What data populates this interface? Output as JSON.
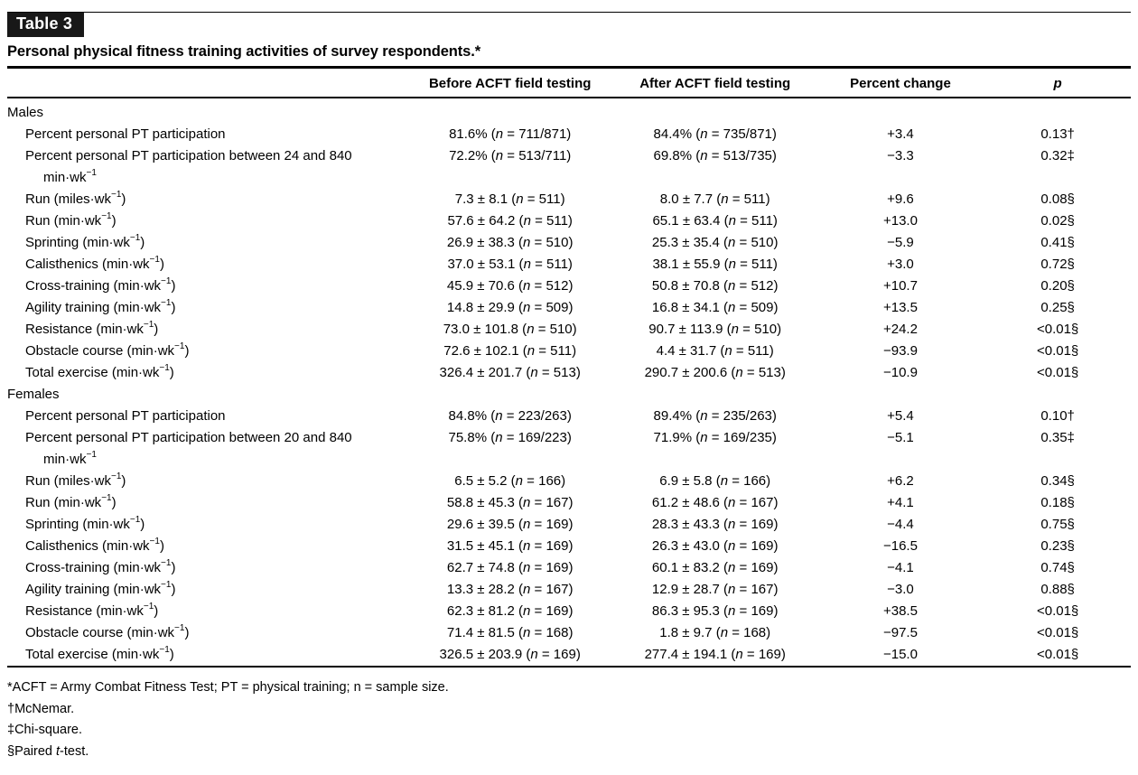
{
  "page": {
    "tag_label": "Table 3",
    "title": "Personal physical fitness training activities of survey respondents.*"
  },
  "columns": [
    "",
    "Before ACFT field testing",
    "After ACFT field testing",
    "Percent change",
    "p"
  ],
  "sections": [
    {
      "header": "Males",
      "rows": [
        {
          "label": "Percent personal PT participation",
          "label2": "",
          "before": "81.6% (n = 711/871)",
          "after": "84.4% (n = 735/871)",
          "change": "+3.4",
          "p": "0.13†"
        },
        {
          "label": "Percent personal PT participation between 24 and 840",
          "label2": "min·wk⁻¹",
          "before": "72.2% (n = 513/711)",
          "after": "69.8% (n = 513/735)",
          "change": "−3.3",
          "p": "0.32‡"
        },
        {
          "label": "Run (miles·wk⁻¹)",
          "label2": "",
          "before": "7.3 ± 8.1 (n = 511)",
          "after": "8.0 ± 7.7 (n = 511)",
          "change": "+9.6",
          "p": "0.08§"
        },
        {
          "label": "Run (min·wk⁻¹)",
          "label2": "",
          "before": "57.6 ± 64.2 (n = 511)",
          "after": "65.1 ± 63.4 (n = 511)",
          "change": "+13.0",
          "p": "0.02§"
        },
        {
          "label": "Sprinting (min·wk⁻¹)",
          "label2": "",
          "before": "26.9 ± 38.3 (n = 510)",
          "after": "25.3 ± 35.4 (n = 510)",
          "change": "−5.9",
          "p": "0.41§"
        },
        {
          "label": "Calisthenics (min·wk⁻¹)",
          "label2": "",
          "before": "37.0 ± 53.1 (n = 511)",
          "after": "38.1 ± 55.9 (n = 511)",
          "change": "+3.0",
          "p": "0.72§"
        },
        {
          "label": "Cross-training (min·wk⁻¹)",
          "label2": "",
          "before": "45.9 ± 70.6 (n = 512)",
          "after": "50.8 ± 70.8 (n = 512)",
          "change": "+10.7",
          "p": "0.20§"
        },
        {
          "label": "Agility training (min·wk⁻¹)",
          "label2": "",
          "before": "14.8 ± 29.9 (n = 509)",
          "after": "16.8 ± 34.1 (n = 509)",
          "change": "+13.5",
          "p": "0.25§"
        },
        {
          "label": "Resistance (min·wk⁻¹)",
          "label2": "",
          "before": "73.0 ± 101.8 (n = 510)",
          "after": "90.7 ± 113.9 (n = 510)",
          "change": "+24.2",
          "p": "<0.01§"
        },
        {
          "label": "Obstacle course (min·wk⁻¹)",
          "label2": "",
          "before": "72.6 ± 102.1 (n = 511)",
          "after": "4.4 ± 31.7 (n = 511)",
          "change": "−93.9",
          "p": "<0.01§"
        },
        {
          "label": "Total exercise (min·wk⁻¹)",
          "label2": "",
          "before": "326.4 ± 201.7 (n = 513)",
          "after": "290.7 ± 200.6 (n = 513)",
          "change": "−10.9",
          "p": "<0.01§"
        }
      ]
    },
    {
      "header": "Females",
      "rows": [
        {
          "label": "Percent personal PT participation",
          "label2": "",
          "before": "84.8% (n = 223/263)",
          "after": "89.4% (n = 235/263)",
          "change": "+5.4",
          "p": "0.10†"
        },
        {
          "label": "Percent personal PT participation between 20 and 840",
          "label2": "min·wk⁻¹",
          "before": "75.8% (n = 169/223)",
          "after": "71.9% (n = 169/235)",
          "change": "−5.1",
          "p": "0.35‡"
        },
        {
          "label": "Run (miles·wk⁻¹)",
          "label2": "",
          "before": "6.5 ± 5.2 (n = 166)",
          "after": "6.9 ± 5.8 (n = 166)",
          "change": "+6.2",
          "p": "0.34§"
        },
        {
          "label": "Run (min·wk⁻¹)",
          "label2": "",
          "before": "58.8 ± 45.3 (n = 167)",
          "after": "61.2 ± 48.6 (n = 167)",
          "change": "+4.1",
          "p": "0.18§"
        },
        {
          "label": "Sprinting (min·wk⁻¹)",
          "label2": "",
          "before": "29.6 ± 39.5 (n = 169)",
          "after": "28.3 ± 43.3 (n = 169)",
          "change": "−4.4",
          "p": "0.75§"
        },
        {
          "label": "Calisthenics (min·wk⁻¹)",
          "label2": "",
          "before": "31.5 ± 45.1 (n = 169)",
          "after": "26.3 ± 43.0 (n = 169)",
          "change": "−16.5",
          "p": "0.23§"
        },
        {
          "label": "Cross-training (min·wk⁻¹)",
          "label2": "",
          "before": "62.7 ± 74.8 (n = 169)",
          "after": "60.1 ± 83.2 (n = 169)",
          "change": "−4.1",
          "p": "0.74§"
        },
        {
          "label": "Agility training (min·wk⁻¹)",
          "label2": "",
          "before": "13.3 ± 28.2 (n = 167)",
          "after": "12.9 ± 28.7 (n = 167)",
          "change": "−3.0",
          "p": "0.88§"
        },
        {
          "label": "Resistance (min·wk⁻¹)",
          "label2": "",
          "before": "62.3 ± 81.2 (n = 169)",
          "after": "86.3 ± 95.3 (n = 169)",
          "change": "+38.5",
          "p": "<0.01§"
        },
        {
          "label": "Obstacle course (min·wk⁻¹)",
          "label2": "",
          "before": "71.4 ± 81.5 (n = 168)",
          "after": "1.8 ± 9.7 (n = 168)",
          "change": "−97.5",
          "p": "<0.01§"
        },
        {
          "label": "Total exercise (min·wk⁻¹)",
          "label2": "",
          "before": "326.5 ± 203.9 (n = 169)",
          "after": "277.4 ± 194.1 (n = 169)",
          "change": "−15.0",
          "p": "<0.01§"
        }
      ]
    }
  ],
  "footnotes": [
    "*ACFT = Army Combat Fitness Test; PT = physical training; n = sample size.",
    "†McNemar.",
    "‡Chi-square.",
    "§Paired t-test."
  ]
}
